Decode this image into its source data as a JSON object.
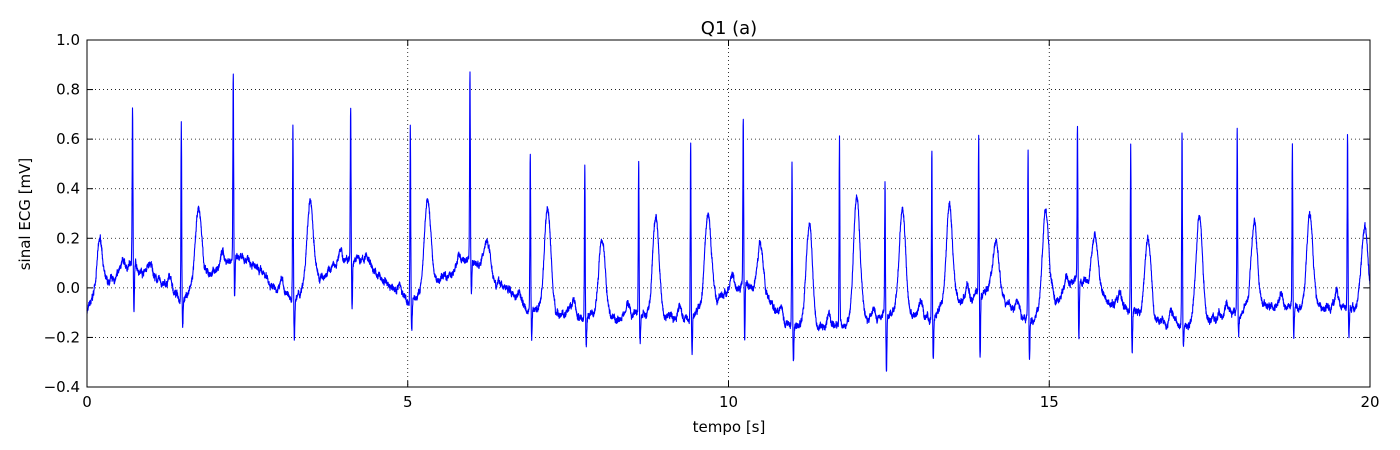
{
  "chart_data": {
    "type": "line",
    "title": "Q1 (a)",
    "xlabel": "tempo [s]",
    "ylabel": "sinal ECG [mV]",
    "xlim": [
      0,
      20
    ],
    "ylim": [
      -0.4,
      1.0
    ],
    "xticks": [
      0,
      5,
      10,
      15,
      20
    ],
    "xtick_labels": [
      "0",
      "5",
      "10",
      "15",
      "20"
    ],
    "yticks": [
      -0.4,
      -0.2,
      0.0,
      0.2,
      0.4,
      0.6,
      0.8,
      1.0
    ],
    "ytick_labels": [
      "−0.4",
      "−0.2",
      "0.0",
      "0.2",
      "0.4",
      "0.6",
      "0.8",
      "1.0"
    ],
    "grid": true,
    "line_color": "#0000ff",
    "sampling_rate_hz": 500,
    "beats": [
      {
        "t": 0.71,
        "r": 0.73,
        "q": -0.1,
        "base": 0.1,
        "tw": 0.14
      },
      {
        "t": 1.47,
        "r": 0.69,
        "q": -0.15,
        "base": -0.04,
        "tw": 0.25
      },
      {
        "t": 2.28,
        "r": 0.89,
        "q": -0.02,
        "base": 0.13,
        "tw": 0.18
      },
      {
        "t": 3.21,
        "r": 0.67,
        "q": -0.19,
        "base": -0.05,
        "tw": 0.28
      },
      {
        "t": 4.11,
        "r": 0.76,
        "q": -0.05,
        "base": 0.14,
        "tw": 0.18
      },
      {
        "t": 5.04,
        "r": 0.65,
        "q": -0.17,
        "base": -0.06,
        "tw": 0.29
      },
      {
        "t": 5.97,
        "r": 0.87,
        "q": 0.0,
        "base": 0.12,
        "tw": 0.25
      },
      {
        "t": 6.91,
        "r": 0.55,
        "q": -0.21,
        "base": -0.08,
        "tw": 0.34
      },
      {
        "t": 7.76,
        "r": 0.5,
        "q": -0.22,
        "base": -0.12,
        "tw": 0.21
      },
      {
        "t": 8.6,
        "r": 0.52,
        "q": -0.22,
        "base": -0.11,
        "tw": 0.28
      },
      {
        "t": 9.41,
        "r": 0.59,
        "q": -0.27,
        "base": -0.12,
        "tw": 0.25
      },
      {
        "t": 10.23,
        "r": 0.68,
        "q": -0.22,
        "base": 0.03,
        "tw": 0.25
      },
      {
        "t": 10.99,
        "r": 0.52,
        "q": -0.3,
        "base": -0.15,
        "tw": 0.25
      },
      {
        "t": 11.73,
        "r": 0.61,
        "q": -0.15,
        "base": -0.16,
        "tw": 0.34
      },
      {
        "t": 12.44,
        "r": 0.43,
        "q": -0.33,
        "base": -0.1,
        "tw": 0.32
      },
      {
        "t": 13.17,
        "r": 0.56,
        "q": -0.28,
        "base": -0.13,
        "tw": 0.28
      },
      {
        "t": 13.9,
        "r": 0.63,
        "q": -0.26,
        "base": 0.0,
        "tw": 0.23
      },
      {
        "t": 14.67,
        "r": 0.55,
        "q": -0.3,
        "base": -0.13,
        "tw": 0.25
      },
      {
        "t": 15.44,
        "r": 0.63,
        "q": -0.22,
        "base": 0.02,
        "tw": 0.26
      },
      {
        "t": 16.27,
        "r": 0.58,
        "q": -0.26,
        "base": -0.1,
        "tw": 0.22
      },
      {
        "t": 17.07,
        "r": 0.64,
        "q": -0.22,
        "base": -0.15,
        "tw": 0.27
      },
      {
        "t": 17.93,
        "r": 0.66,
        "q": -0.17,
        "base": -0.09,
        "tw": 0.25
      },
      {
        "t": 18.79,
        "r": 0.59,
        "q": -0.2,
        "base": -0.07,
        "tw": 0.28
      },
      {
        "t": 19.65,
        "r": 0.62,
        "q": -0.19,
        "base": -0.07,
        "tw": 0.27
      }
    ]
  }
}
